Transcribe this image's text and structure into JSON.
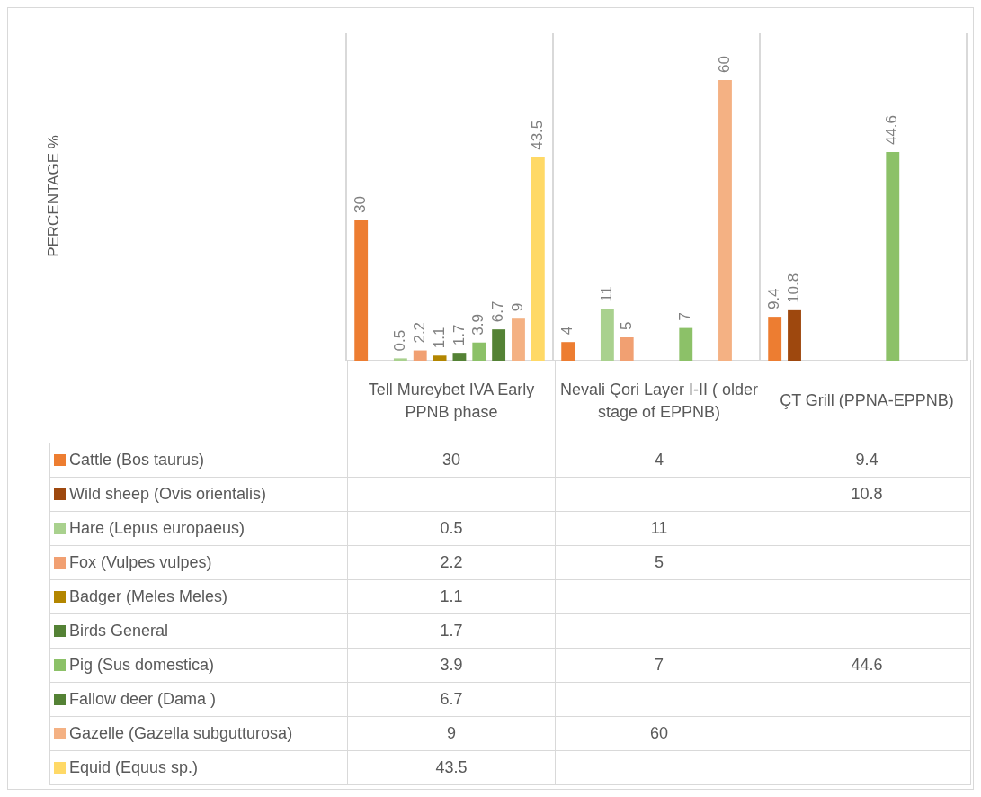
{
  "chart_data": {
    "type": "bar",
    "annotations": [
      "PERCENTAGE %",
      "30",
      "4",
      "9.4",
      "10.8",
      "0.5",
      "11",
      "2.2",
      "5",
      "1.1",
      "1.7",
      "3.9",
      "7",
      "44.6",
      "6.7",
      "9",
      "60",
      "43.5"
    ],
    "categories": [
      "Tell Mureybet IVA Early PPNB phase",
      "Nevali Çori Layer I-II ( older stage of EPPNB)",
      "ÇT Grill (PPNA-EPPNB)"
    ],
    "series": [
      {
        "name": "Cattle (Bos taurus)",
        "color": "#ed7d31",
        "values": [
          30,
          4,
          9.4
        ]
      },
      {
        "name": "Wild sheep (Ovis orientalis)",
        "color": "#9e480e",
        "values": [
          null,
          null,
          10.8
        ]
      },
      {
        "name": "Hare (Lepus europaeus)",
        "color": "#a9d18e",
        "values": [
          0.5,
          11,
          null
        ]
      },
      {
        "name": "Fox (Vulpes vulpes)",
        "color": "#f1a072",
        "values": [
          2.2,
          5,
          null
        ]
      },
      {
        "name": "Badger (Meles Meles)",
        "color": "#b38600",
        "values": [
          1.1,
          null,
          null
        ]
      },
      {
        "name": "Birds General",
        "color": "#548235",
        "values": [
          1.7,
          null,
          null
        ]
      },
      {
        "name": "Pig (Sus domestica)",
        "color": "#8cc168",
        "values": [
          3.9,
          7,
          44.6
        ]
      },
      {
        "name": "Fallow deer (Dama )",
        "color": "#548235",
        "values": [
          6.7,
          null,
          null
        ]
      },
      {
        "name": "Gazelle (Gazella subgutturosa)",
        "color": "#f4b183",
        "values": [
          9,
          60,
          null
        ]
      },
      {
        "name": "Equid (Equus sp.)",
        "color": "#ffd966",
        "values": [
          43.5,
          null,
          null
        ]
      }
    ],
    "data_labels": true,
    "legend": "bottom",
    "grid": "x"
  }
}
